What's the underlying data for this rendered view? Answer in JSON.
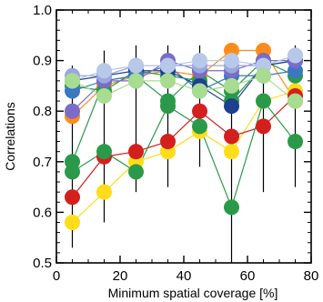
{
  "chart_data": {
    "type": "scatter",
    "title": "",
    "xlabel": "Minimum spatial coverage [%]",
    "ylabel": "Correlations",
    "xlim": [
      0,
      80
    ],
    "ylim": [
      0.5,
      1.0
    ],
    "x_ticks": [
      0,
      20,
      40,
      60,
      80
    ],
    "y_ticks": [
      0.5,
      0.6,
      0.7,
      0.8,
      0.9,
      1.0
    ],
    "x_tick_labels": [
      "0",
      "20",
      "40",
      "60",
      "80"
    ],
    "y_tick_labels": [
      "0.5",
      "0.6",
      "0.7",
      "0.8",
      "0.9",
      "1.0"
    ],
    "grid": false,
    "legend": "none",
    "x": [
      5,
      15,
      25,
      35,
      45,
      55,
      65,
      75
    ],
    "series": [
      {
        "color": "#ff8c1a",
        "values": [
          0.79,
          0.85,
          0.87,
          0.88,
          0.87,
          0.92,
          0.92,
          0.82
        ]
      },
      {
        "color": "#ffdd1a",
        "values": [
          0.58,
          0.64,
          0.7,
          0.72,
          0.76,
          0.72,
          0.82,
          0.84
        ]
      },
      {
        "color": "#d41f1f",
        "values": [
          0.63,
          0.71,
          0.72,
          0.74,
          0.8,
          0.75,
          0.77,
          0.83
        ]
      },
      {
        "color": "#2a9a4a",
        "values": [
          0.68,
          0.72,
          0.68,
          0.81,
          0.77,
          0.61,
          0.82,
          0.74
        ]
      },
      {
        "color": "#2a9a4a",
        "values": [
          0.7,
          0.86,
          0.87,
          0.82,
          0.88,
          0.84,
          0.9,
          0.87
        ]
      },
      {
        "color": "#2a9a4a",
        "values": [
          0.85,
          0.84,
          0.88,
          0.87,
          0.86,
          0.82,
          0.89,
          0.9
        ]
      },
      {
        "color": "#1f3f8f",
        "values": [
          0.86,
          0.87,
          0.88,
          0.88,
          0.85,
          0.81,
          0.89,
          0.9
        ]
      },
      {
        "color": "#3a78c0",
        "values": [
          0.84,
          0.86,
          0.87,
          0.89,
          0.84,
          0.87,
          0.87,
          0.88
        ]
      },
      {
        "color": "#7a6cc8",
        "values": [
          0.8,
          0.86,
          0.86,
          0.9,
          0.88,
          0.88,
          0.9,
          0.9
        ]
      },
      {
        "color": "#9aa8dd",
        "values": [
          0.87,
          0.87,
          0.89,
          0.89,
          0.89,
          0.89,
          0.89,
          0.91
        ]
      },
      {
        "color": "#b8c8e8",
        "values": [
          0.86,
          0.88,
          0.89,
          0.89,
          0.9,
          0.9,
          0.89,
          0.91
        ]
      },
      {
        "color": "#a8dc90",
        "values": [
          0.86,
          0.83,
          0.86,
          0.86,
          0.84,
          0.85,
          0.87,
          0.82
        ]
      }
    ],
    "error_bars": [
      {
        "x": 5,
        "low": 0.53,
        "high": 0.89
      },
      {
        "x": 15,
        "low": 0.58,
        "high": 0.92
      },
      {
        "x": 25,
        "low": 0.64,
        "high": 0.93
      },
      {
        "x": 35,
        "low": 0.65,
        "high": 0.93
      },
      {
        "x": 45,
        "low": 0.69,
        "high": 0.93
      },
      {
        "x": 55,
        "low": 0.5,
        "high": 0.93
      },
      {
        "x": 65,
        "low": 0.64,
        "high": 0.93
      },
      {
        "x": 75,
        "low": 0.65,
        "high": 0.93
      }
    ]
  }
}
